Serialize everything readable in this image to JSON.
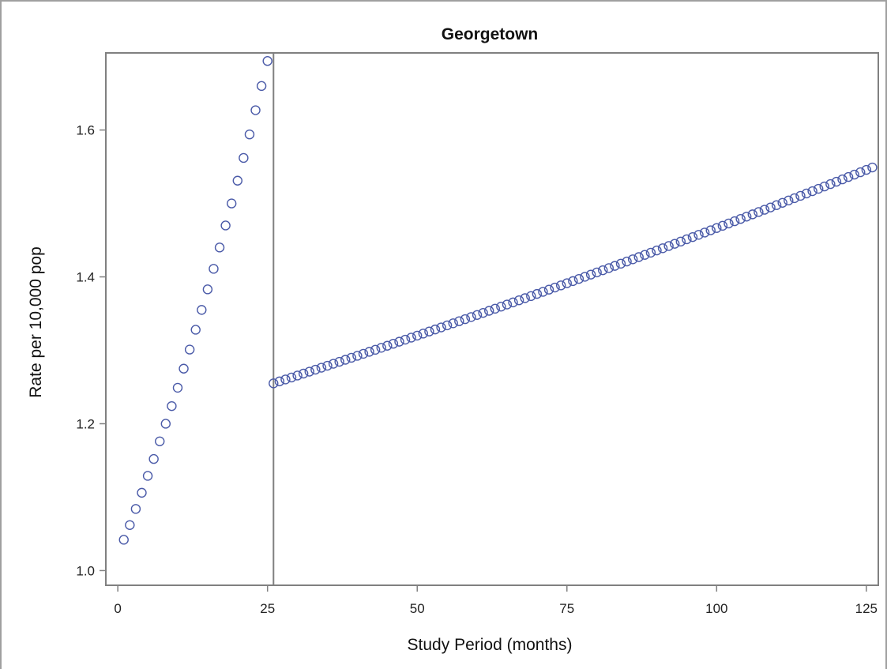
{
  "chart_data": {
    "type": "scatter",
    "title": "Georgetown",
    "xlabel": "Study Period (months)",
    "ylabel": "Rate per 10,000 pop",
    "xlim": [
      -2,
      127
    ],
    "ylim": [
      0.98,
      1.705
    ],
    "xticks": [
      0,
      25,
      50,
      75,
      100,
      125
    ],
    "yticks": [
      1.0,
      1.2,
      1.4,
      1.6
    ],
    "ytick_labels": [
      "1.0",
      "1.2",
      "1.4",
      "1.6"
    ],
    "reference_line_x": 26,
    "grid": false,
    "series": [
      {
        "segment": "pre-intervention",
        "x_start": 1,
        "x_end": 25,
        "points": [
          [
            1,
            1.042
          ],
          [
            2,
            1.062
          ],
          [
            3,
            1.084
          ],
          [
            4,
            1.106
          ],
          [
            5,
            1.129
          ],
          [
            6,
            1.152
          ],
          [
            7,
            1.176
          ],
          [
            8,
            1.2
          ],
          [
            9,
            1.224
          ],
          [
            10,
            1.249
          ],
          [
            11,
            1.275
          ],
          [
            12,
            1.301
          ],
          [
            13,
            1.328
          ],
          [
            14,
            1.355
          ],
          [
            15,
            1.383
          ],
          [
            16,
            1.411
          ],
          [
            17,
            1.44
          ],
          [
            18,
            1.47
          ],
          [
            19,
            1.5
          ],
          [
            20,
            1.531
          ],
          [
            21,
            1.562
          ],
          [
            22,
            1.594
          ],
          [
            23,
            1.627
          ],
          [
            24,
            1.66
          ],
          [
            25,
            1.694
          ]
        ]
      },
      {
        "segment": "post-intervention",
        "x_start": 26,
        "x_end": 126,
        "y_start": 1.255,
        "y_end": 1.549
      }
    ],
    "marker": "open-circle",
    "marker_color": "#4a5aa8"
  }
}
